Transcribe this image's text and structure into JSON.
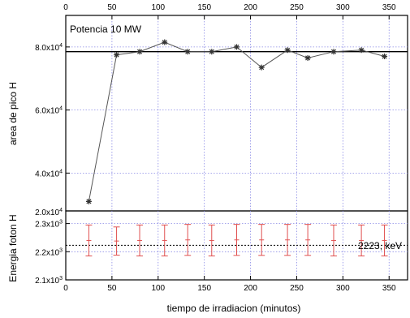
{
  "chart_data": [
    {
      "type": "line",
      "panel": "top",
      "annotation": "Potencia 10 MW",
      "ylabel": "area de pico H",
      "xlim": [
        0,
        370
      ],
      "ylim": [
        28000,
        90000
      ],
      "top_ticks": [
        "0",
        "50",
        "100",
        "150",
        "200",
        "250",
        "300",
        "350"
      ],
      "y_ticks": [
        {
          "value": 40000,
          "label": "4.0x10",
          "exp": "4"
        },
        {
          "value": 60000,
          "label": "6.0x10",
          "exp": "4"
        },
        {
          "value": 80000,
          "label": "8.0x10",
          "exp": "4"
        }
      ],
      "grid": true,
      "reference_line": 78500,
      "series": [
        {
          "x": [
            25,
            55,
            80,
            107,
            132,
            158,
            185,
            212,
            240,
            262,
            290,
            320,
            345
          ],
          "y": [
            31000,
            77500,
            78500,
            81500,
            78500,
            78500,
            80000,
            73500,
            79000,
            76500,
            78500,
            79000,
            77000
          ],
          "marker": "star",
          "color": "#555555"
        }
      ]
    },
    {
      "type": "scatter",
      "panel": "bottom",
      "xlabel": "tiempo de irradiacion (minutos)",
      "ylabel": "Energia foton H",
      "xlim": [
        0,
        370
      ],
      "ylim": [
        2100,
        2345
      ],
      "bottom_ticks": [
        "0",
        "50",
        "100",
        "150",
        "200",
        "250",
        "300",
        "350"
      ],
      "y_ticks": [
        {
          "value": 2100,
          "label": "2.1x10",
          "exp": "3"
        },
        {
          "value": 2200,
          "label": "2.2x10",
          "exp": "3"
        },
        {
          "value": 2300,
          "label": "2.3x10",
          "exp": "3"
        }
      ],
      "boundary_label": {
        "label": "2.0x10",
        "exp": "4"
      },
      "grid": true,
      "reference_line": 2223,
      "reference_label": "2223, keV",
      "series": [
        {
          "x": [
            25,
            55,
            80,
            107,
            132,
            158,
            185,
            212,
            240,
            262,
            290,
            320,
            345
          ],
          "y": [
            2240,
            2238,
            2240,
            2240,
            2242,
            2240,
            2242,
            2242,
            2242,
            2242,
            2240,
            2240,
            2240
          ],
          "error": [
            55,
            50,
            55,
            55,
            55,
            55,
            55,
            55,
            55,
            55,
            55,
            55,
            55
          ],
          "marker": "errorbar",
          "color": "#e05050"
        }
      ]
    }
  ]
}
